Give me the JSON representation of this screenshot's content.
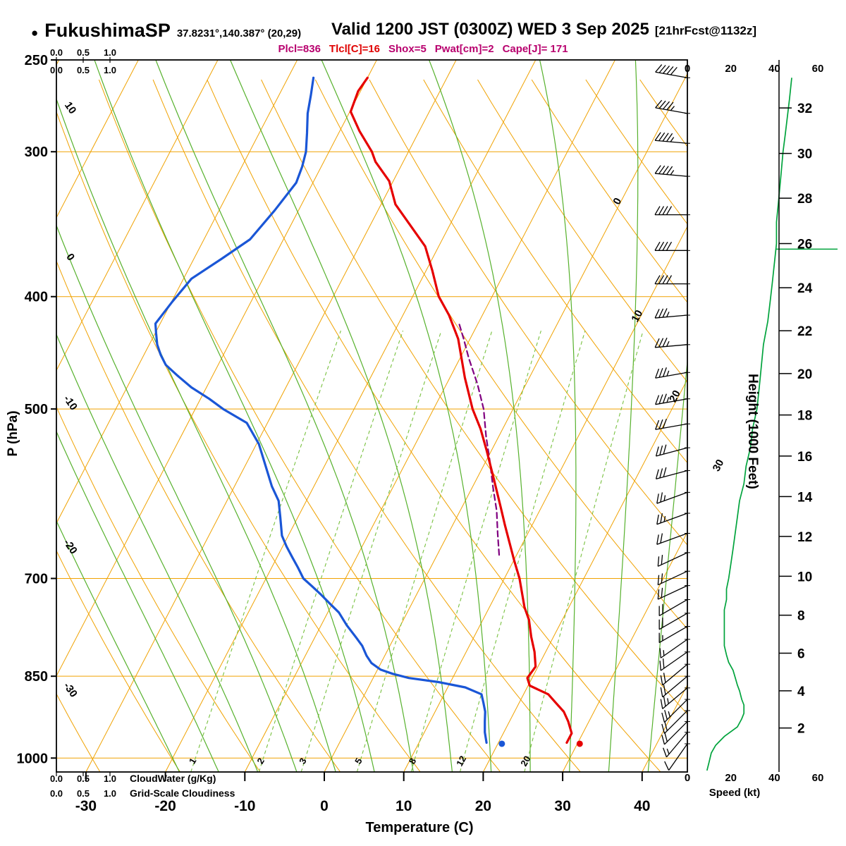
{
  "header": {
    "bullet": "●",
    "station": "FukushimaSP",
    "coords": "37.8231°,140.387° (20,29)",
    "valid": "Valid 1200 JST (0300Z) WED 3 Sep 2025",
    "fcst": "[21hrFcst@1132z]",
    "indices": [
      {
        "label": "Plcl",
        "text": "Plcl=836",
        "color": "#b8006e"
      },
      {
        "label": "Tlcl",
        "text": "Tlcl[C]=16",
        "color": "#e00000"
      },
      {
        "label": " Shox",
        "text": "Shox=5",
        "color": "#b8006e"
      },
      {
        "label": "Pwat",
        "text": "Pwat[cm]=2",
        "color": "#b8006e"
      },
      {
        "label": "Cape",
        "text": "Cape[J]= 171",
        "color": "#b8006e"
      }
    ]
  },
  "axes": {
    "pressure_label": "P (hPa)",
    "pressure_ticks": [
      250,
      300,
      400,
      500,
      700,
      850,
      1000
    ],
    "temperature_label": "Temperature (C)",
    "temperature_ticks": [
      -30,
      -20,
      -10,
      0,
      10,
      20,
      30,
      40
    ],
    "height_label": "Height (1000 Feet)",
    "height_ticks": [
      [
        2,
        942
      ],
      [
        4,
        875
      ],
      [
        6,
        812
      ],
      [
        8,
        753
      ],
      [
        10,
        697
      ],
      [
        12,
        644
      ],
      [
        14,
        595
      ],
      [
        16,
        549
      ],
      [
        18,
        506
      ],
      [
        20,
        466
      ],
      [
        22,
        428
      ],
      [
        24,
        393
      ],
      [
        26,
        360
      ],
      [
        28,
        329
      ],
      [
        30,
        301
      ],
      [
        32,
        275
      ]
    ],
    "speed_label": "Speed (kt)",
    "speed_ticks": [
      0,
      20,
      40,
      60
    ],
    "cloudwater_label": "CloudWater (g/Kg)",
    "cloudiness_label": "Grid-Scale Cloudiness",
    "cloud_scale_ticks": [
      "0.0",
      "0.5",
      "1.0"
    ]
  },
  "colors": {
    "grid": "#f0a202",
    "moist": "#56b12c",
    "mixing": "#79c140",
    "speed": "#00a33c",
    "temperature": "#e60000",
    "dewpoint": "#1a56d6",
    "parcel": "#800080",
    "barbs": "#000000"
  },
  "chart_data": {
    "type": "line",
    "subtype": "skew-t-log-p-sounding",
    "pressure_range_hpa": [
      250,
      1028
    ],
    "temperature_axis_c": [
      -30,
      40
    ],
    "skew": 0.52,
    "series": [
      {
        "name": "temperature_c",
        "color": "#e60000",
        "style": "solid",
        "points": [
          [
            970,
            28.6
          ],
          [
            952,
            28.6
          ],
          [
            930,
            27.4
          ],
          [
            912,
            26.2
          ],
          [
            896,
            24.6
          ],
          [
            881,
            23.1
          ],
          [
            866,
            20.2
          ],
          [
            853,
            19.4
          ],
          [
            834,
            19.7
          ],
          [
            810,
            18.6
          ],
          [
            786,
            17.2
          ],
          [
            760,
            15.8
          ],
          [
            741,
            14.4
          ],
          [
            700,
            11.9
          ],
          [
            676,
            10.1
          ],
          [
            652,
            8.3
          ],
          [
            630,
            6.6
          ],
          [
            608,
            4.9
          ],
          [
            575,
            2.2
          ],
          [
            543,
            -0.6
          ],
          [
            520,
            -2.8
          ],
          [
            500,
            -5.1
          ],
          [
            470,
            -8.1
          ],
          [
            435,
            -11.5
          ],
          [
            415,
            -14.2
          ],
          [
            400,
            -16.7
          ],
          [
            380,
            -19.2
          ],
          [
            362,
            -21.7
          ],
          [
            347,
            -25.0
          ],
          [
            333,
            -28.2
          ],
          [
            318,
            -30.5
          ],
          [
            306,
            -33.5
          ],
          [
            300,
            -34.6
          ],
          [
            288,
            -37.5
          ],
          [
            277,
            -39.9
          ],
          [
            266,
            -40.3
          ],
          [
            259,
            -40.0
          ]
        ]
      },
      {
        "name": "dewpoint_c",
        "color": "#1a56d6",
        "style": "solid",
        "points": [
          [
            970,
            18.5
          ],
          [
            950,
            17.6
          ],
          [
            930,
            16.9
          ],
          [
            912,
            16.3
          ],
          [
            896,
            15.5
          ],
          [
            881,
            14.7
          ],
          [
            869,
            12.2
          ],
          [
            860,
            8.5
          ],
          [
            853,
            4.5
          ],
          [
            846,
            2.2
          ],
          [
            839,
            0.4
          ],
          [
            828,
            -1.2
          ],
          [
            816,
            -2.3
          ],
          [
            800,
            -3.5
          ],
          [
            787,
            -4.8
          ],
          [
            768,
            -6.8
          ],
          [
            749,
            -8.6
          ],
          [
            736,
            -10.3
          ],
          [
            723,
            -12.0
          ],
          [
            711,
            -13.7
          ],
          [
            700,
            -15.3
          ],
          [
            685,
            -16.7
          ],
          [
            671,
            -18.1
          ],
          [
            657,
            -19.5
          ],
          [
            643,
            -20.8
          ],
          [
            620,
            -22.2
          ],
          [
            600,
            -23.5
          ],
          [
            583,
            -25.3
          ],
          [
            560,
            -27.4
          ],
          [
            536,
            -29.7
          ],
          [
            514,
            -32.6
          ],
          [
            500,
            -36.5
          ],
          [
            490,
            -38.9
          ],
          [
            479,
            -41.9
          ],
          [
            468,
            -44.4
          ],
          [
            458,
            -46.6
          ],
          [
            449,
            -47.9
          ],
          [
            440,
            -49.0
          ],
          [
            430,
            -49.9
          ],
          [
            422,
            -50.6
          ],
          [
            404,
            -49.9
          ],
          [
            386,
            -49.0
          ],
          [
            371,
            -46.5
          ],
          [
            357,
            -44.2
          ],
          [
            337,
            -43.0
          ],
          [
            319,
            -42.1
          ],
          [
            309,
            -42.4
          ],
          [
            300,
            -42.9
          ],
          [
            289,
            -44.0
          ],
          [
            278,
            -45.2
          ],
          [
            268,
            -46.0
          ],
          [
            259,
            -46.8
          ]
        ]
      },
      {
        "name": "parcel_c",
        "color": "#800080",
        "style": "dashed",
        "points": [
          [
            668,
            7.8
          ],
          [
            640,
            6.2
          ],
          [
            612,
            4.6
          ],
          [
            584,
            2.6
          ],
          [
            556,
            0.6
          ],
          [
            528,
            -1.6
          ],
          [
            500,
            -3.7
          ],
          [
            476,
            -6.1
          ],
          [
            452,
            -8.9
          ],
          [
            435,
            -10.8
          ],
          [
            421,
            -12.5
          ]
        ]
      },
      {
        "name": "wind_speed_kt",
        "color": "#00a33c",
        "style": "solid",
        "points": [
          [
            1025,
            9
          ],
          [
            1008,
            10
          ],
          [
            990,
            11
          ],
          [
            975,
            13
          ],
          [
            958,
            17
          ],
          [
            940,
            23
          ],
          [
            925,
            25
          ],
          [
            915,
            26
          ],
          [
            900,
            26
          ],
          [
            890,
            25
          ],
          [
            875,
            24
          ],
          [
            865,
            23
          ],
          [
            852,
            22
          ],
          [
            840,
            21
          ],
          [
            827,
            19
          ],
          [
            815,
            18
          ],
          [
            800,
            17
          ],
          [
            790,
            17
          ],
          [
            775,
            17
          ],
          [
            760,
            17
          ],
          [
            745,
            17
          ],
          [
            730,
            18
          ],
          [
            715,
            18
          ],
          [
            700,
            19
          ],
          [
            680,
            20
          ],
          [
            660,
            21
          ],
          [
            640,
            22
          ],
          [
            620,
            23
          ],
          [
            600,
            24
          ],
          [
            580,
            26
          ],
          [
            560,
            27
          ],
          [
            540,
            29
          ],
          [
            520,
            30
          ],
          [
            500,
            32
          ],
          [
            480,
            33
          ],
          [
            460,
            34
          ],
          [
            440,
            35
          ],
          [
            420,
            37
          ],
          [
            405,
            38
          ],
          [
            390,
            39
          ],
          [
            375,
            40
          ],
          [
            360,
            41
          ],
          [
            345,
            41
          ],
          [
            330,
            42
          ],
          [
            315,
            43
          ],
          [
            300,
            44
          ],
          [
            290,
            45
          ],
          [
            280,
            46
          ],
          [
            270,
            47
          ],
          [
            259,
            48
          ]
        ]
      }
    ],
    "surface_markers": [
      {
        "name": "surface-temperature-dot",
        "color": "#e60000",
        "p": 972,
        "value_c": 30.3
      },
      {
        "name": "surface-dewpoint-dot",
        "color": "#1a56d6",
        "p": 972,
        "value_c": 20.5
      }
    ],
    "wind_barbs_p_dir_kt": [
      [
        972,
        215,
        10
      ],
      [
        950,
        220,
        15
      ],
      [
        930,
        225,
        20
      ],
      [
        910,
        225,
        22
      ],
      [
        890,
        225,
        24
      ],
      [
        870,
        230,
        24
      ],
      [
        850,
        230,
        22
      ],
      [
        830,
        230,
        20
      ],
      [
        810,
        235,
        18
      ],
      [
        790,
        235,
        17
      ],
      [
        770,
        240,
        17
      ],
      [
        750,
        240,
        18
      ],
      [
        730,
        240,
        18
      ],
      [
        710,
        245,
        19
      ],
      [
        690,
        245,
        20
      ],
      [
        665,
        245,
        21
      ],
      [
        640,
        250,
        22
      ],
      [
        615,
        250,
        24
      ],
      [
        590,
        250,
        26
      ],
      [
        565,
        255,
        28
      ],
      [
        540,
        255,
        30
      ],
      [
        515,
        260,
        31
      ],
      [
        490,
        260,
        33
      ],
      [
        465,
        260,
        34
      ],
      [
        440,
        265,
        36
      ],
      [
        415,
        265,
        37
      ],
      [
        390,
        270,
        39
      ],
      [
        365,
        270,
        40
      ],
      [
        340,
        270,
        42
      ],
      [
        315,
        275,
        43
      ],
      [
        295,
        275,
        45
      ],
      [
        278,
        280,
        46
      ],
      [
        259,
        280,
        48
      ]
    ],
    "height_marker": {
      "p": 364,
      "color": "#00a33c"
    },
    "grid": {
      "isobars": [
        300,
        400,
        500,
        700,
        850,
        1000
      ],
      "isotherms_c": {
        "min": -120,
        "max": 40,
        "step": 10
      },
      "isotherm_labels": [
        [
          0,
          332
        ],
        [
          10,
          417
        ],
        [
          20,
          489
        ],
        [
          30,
          561
        ]
      ],
      "dry_adiabats_k": {
        "min": 233,
        "max": 433,
        "step": 10
      },
      "dry_adiabat_labels_c": [
        -30,
        -20,
        -10,
        0,
        10
      ],
      "moist_adiabats_c": [
        -20,
        -15,
        -10,
        -5,
        0,
        5,
        10,
        15,
        20,
        25,
        30,
        35,
        40
      ],
      "mixing_ratios_gkg": [
        1,
        2,
        3,
        5,
        8,
        12,
        20
      ],
      "mixing_ratio_top_p": 420
    }
  }
}
